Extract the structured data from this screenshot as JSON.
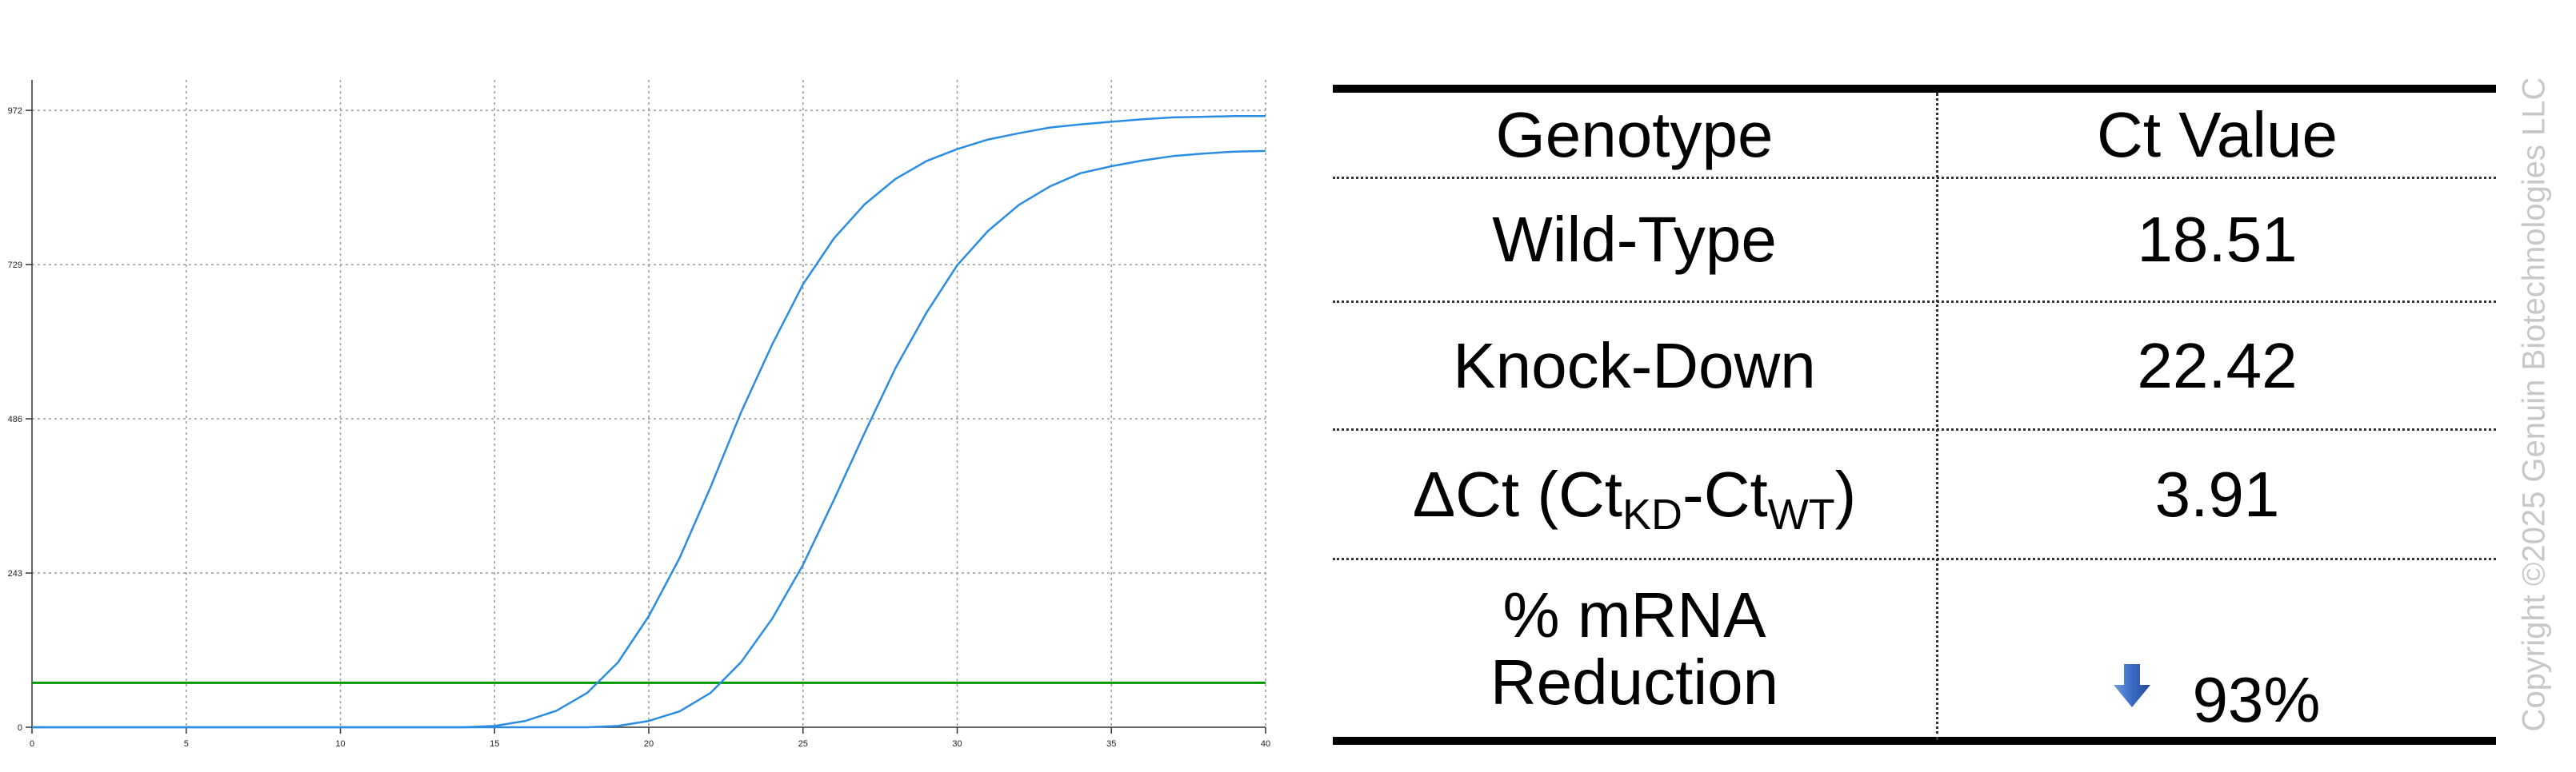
{
  "chart_data": {
    "type": "line",
    "title": "",
    "xlabel": "",
    "ylabel": "",
    "xlim": [
      0,
      40
    ],
    "ylim": [
      0,
      1020
    ],
    "x_ticks": [
      0,
      5,
      10,
      15,
      20,
      25,
      30,
      35,
      40
    ],
    "y_ticks": [
      0,
      243,
      486,
      729,
      972
    ],
    "grid": true,
    "grid_style": "dotted",
    "threshold": {
      "value": 70,
      "color": "#009900"
    },
    "series_color": "#2b8de2",
    "series": [
      {
        "x": [
          0,
          1,
          2,
          3,
          4,
          5,
          6,
          7,
          8,
          9,
          10,
          11,
          12,
          13,
          14,
          15,
          16,
          17,
          18,
          19,
          20,
          21,
          22,
          23,
          24,
          25,
          26,
          27,
          28,
          29,
          30,
          31,
          32,
          33,
          34,
          35,
          36,
          37,
          38,
          39,
          40
        ],
        "values": [
          0,
          0,
          0,
          0,
          0,
          0,
          0,
          0,
          0,
          0,
          0,
          0,
          0,
          0,
          0,
          2,
          10,
          26,
          54,
          102,
          175,
          267,
          378,
          497,
          603,
          698,
          770,
          824,
          864,
          892,
          911,
          926,
          936,
          945,
          950,
          954,
          958,
          961,
          962,
          963,
          963
        ]
      },
      {
        "x": [
          0,
          1,
          2,
          3,
          4,
          5,
          6,
          7,
          8,
          9,
          10,
          11,
          12,
          13,
          14,
          15,
          16,
          17,
          18,
          19,
          20,
          21,
          22,
          23,
          24,
          25,
          26,
          27,
          28,
          29,
          30,
          31,
          32,
          33,
          34,
          35,
          36,
          37,
          38,
          39,
          40
        ],
        "values": [
          0,
          0,
          0,
          0,
          0,
          0,
          0,
          0,
          0,
          0,
          0,
          0,
          0,
          0,
          0,
          0,
          0,
          0,
          0,
          2,
          10,
          25,
          54,
          103,
          171,
          256,
          358,
          464,
          566,
          653,
          728,
          782,
          823,
          852,
          873,
          884,
          893,
          900,
          904,
          907,
          908
        ]
      }
    ]
  },
  "table": {
    "header": [
      "Genotype",
      "Ct Value"
    ],
    "rows": [
      {
        "label": "Wild-Type",
        "value": "18.51"
      },
      {
        "label": "Knock-Down",
        "value": "22.42"
      },
      {
        "label_main": "ΔCt (Ct",
        "label_sub1": "KD",
        "label_mid": "-Ct",
        "label_sub2": "WT",
        "label_end": ")",
        "value": "3.91"
      },
      {
        "label_line1": "% mRNA",
        "label_line2": "Reduction",
        "value": "93%",
        "icon": "arrow-down-icon"
      }
    ]
  },
  "copyright": "Copyright ©2025 Genuin Biotechnologies LLC",
  "colors": {
    "accent_arrow": "#3a6bc4",
    "threshold_line": "#009900",
    "curve": "#2b8de2",
    "watermark": "#c8c8c8"
  }
}
